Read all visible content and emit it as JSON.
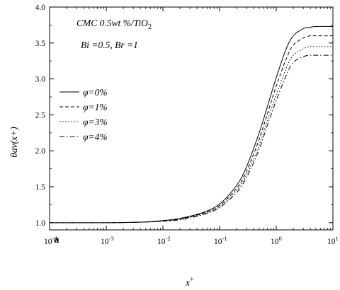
{
  "chart_data": {
    "type": "line",
    "title": "",
    "annotation_lines": [
      "CMC 0.5wt %/TiO2",
      "Bi =0.5, Br =1"
    ],
    "panel_label": "a",
    "xlabel": "x+",
    "ylabel": "θav(x+)",
    "xscale": "log",
    "xlim": [
      0.0001,
      10
    ],
    "ylim": [
      0.9,
      4.0
    ],
    "x_ticks": [
      {
        "value": 0.0001,
        "base": "10",
        "exp": "-4"
      },
      {
        "value": 0.001,
        "base": "10",
        "exp": "-3"
      },
      {
        "value": 0.01,
        "base": "10",
        "exp": "-2"
      },
      {
        "value": 0.1,
        "base": "10",
        "exp": "-1"
      },
      {
        "value": 1,
        "base": "10",
        "exp": "0"
      },
      {
        "value": 10,
        "base": "10",
        "exp": "1"
      }
    ],
    "y_ticks": [
      "1.0",
      "1.5",
      "2.0",
      "2.5",
      "3.0",
      "3.5",
      "4.0"
    ],
    "grid": false,
    "legend_position": "left-middle",
    "series": [
      {
        "name": "φ=0%",
        "dash": "solid",
        "x": [
          0.0001,
          0.001,
          0.005,
          0.01,
          0.02,
          0.05,
          0.1,
          0.2,
          0.3,
          0.5,
          0.7,
          1.0,
          1.5,
          2.0,
          3.0,
          4.0,
          5.0,
          10
        ],
        "y": [
          1.0,
          1.0,
          1.01,
          1.03,
          1.06,
          1.14,
          1.26,
          1.52,
          1.78,
          2.25,
          2.62,
          3.02,
          3.42,
          3.6,
          3.7,
          3.72,
          3.73,
          3.73
        ]
      },
      {
        "name": "φ=1%",
        "dash": "dashed",
        "x": [
          0.0001,
          0.001,
          0.005,
          0.01,
          0.02,
          0.05,
          0.1,
          0.2,
          0.3,
          0.5,
          0.7,
          1.0,
          1.5,
          2.0,
          3.0,
          4.0,
          5.0,
          10
        ],
        "y": [
          1.0,
          1.0,
          1.01,
          1.03,
          1.05,
          1.13,
          1.24,
          1.48,
          1.72,
          2.16,
          2.52,
          2.9,
          3.28,
          3.47,
          3.57,
          3.6,
          3.6,
          3.6
        ]
      },
      {
        "name": "φ=3%",
        "dash": "dotted",
        "x": [
          0.0001,
          0.001,
          0.005,
          0.01,
          0.02,
          0.05,
          0.1,
          0.2,
          0.3,
          0.5,
          0.7,
          1.0,
          1.5,
          2.0,
          3.0,
          4.0,
          5.0,
          10
        ],
        "y": [
          1.0,
          1.0,
          1.01,
          1.02,
          1.05,
          1.12,
          1.22,
          1.45,
          1.67,
          2.08,
          2.43,
          2.78,
          3.15,
          3.33,
          3.42,
          3.45,
          3.45,
          3.45
        ]
      },
      {
        "name": "φ=4%",
        "dash": "dashdot",
        "x": [
          0.0001,
          0.001,
          0.005,
          0.01,
          0.02,
          0.05,
          0.1,
          0.2,
          0.3,
          0.5,
          0.7,
          1.0,
          1.5,
          2.0,
          3.0,
          4.0,
          5.0,
          10
        ],
        "y": [
          1.0,
          1.0,
          1.01,
          1.02,
          1.04,
          1.11,
          1.21,
          1.42,
          1.63,
          2.02,
          2.36,
          2.7,
          3.05,
          3.23,
          3.31,
          3.33,
          3.33,
          3.33
        ]
      }
    ]
  }
}
